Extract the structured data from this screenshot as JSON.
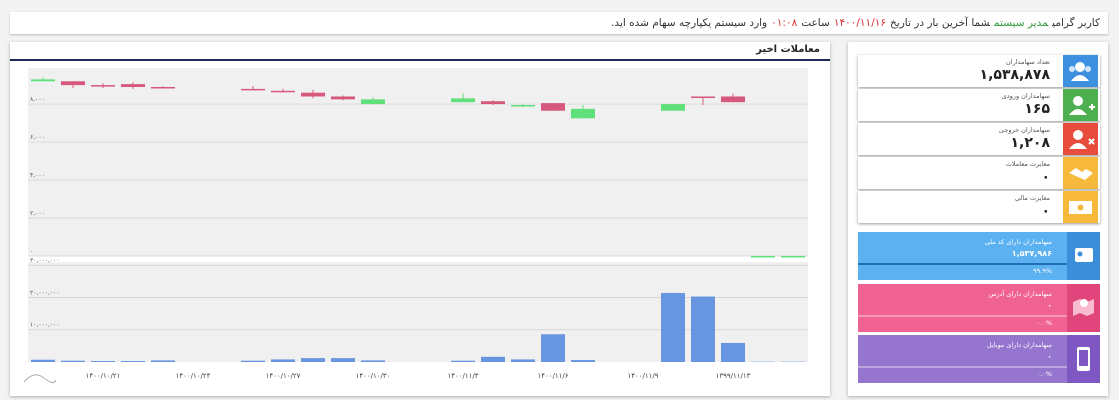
{
  "header": {
    "parts": [
      "کاربر گرامی",
      "مدیر سیستم",
      "شما آخرین بار در تاریخ",
      "۱۴۰۰/۱۱/۱۶",
      "ساعت",
      "۰۱:۰۸",
      "وارد سیستم یکپارچه سهام شده اید."
    ]
  },
  "stats": [
    {
      "label": "تعداد سهامداران",
      "value": "۱,۵۳۸,۸۷۸"
    },
    {
      "label": "سهامداران ورودی",
      "value": "۱۶۵"
    },
    {
      "label": "سهامداران خروجی",
      "value": "۱,۲۰۸"
    },
    {
      "label": "مغایرت معاملات",
      "value": "۰"
    },
    {
      "label": "مغایرت مالی",
      "value": "۰"
    }
  ],
  "coverage": [
    {
      "label": "سهامداران دارای کد ملی",
      "value": "۱,۵۳۷,۹۸۶",
      "percent": "۹۹.۹%"
    },
    {
      "label": "سهامداران دارای آدرس",
      "value": "۰",
      "percent": "۰.۰%"
    },
    {
      "label": "سهامداران دارای موبایل",
      "value": "۰",
      "percent": "۰.۰%"
    }
  ],
  "chart_data": {
    "type": "candlestick",
    "title": "معاملات اخیر",
    "categories": [
      null,
      null,
      "۱۴۰۰/۱۰/۲۱",
      null,
      null,
      "۱۴۰۰/۱۰/۲۴",
      null,
      null,
      "۱۴۰۰/۱۰/۲۷",
      null,
      null,
      "۱۴۰۰/۱۰/۳۰",
      null,
      null,
      "۱۴۰۰/۱۱/۳",
      null,
      null,
      "۱۴۰۰/۱۱/۶",
      null,
      null,
      "۱۴۰۰/۱۱/۹",
      null,
      null,
      "۱۳۹۹/۱۱/۱۳",
      null,
      null
    ],
    "open": [
      9200,
      9200,
      9000,
      9050,
      8900,
      null,
      null,
      8800,
      8700,
      8600,
      8400,
      8000,
      null,
      null,
      8100,
      8150,
      7900,
      8050,
      7250,
      null,
      null,
      7650,
      8400,
      8400,
      0,
      0
    ],
    "high": [
      9400,
      9200,
      9100,
      9150,
      8950,
      null,
      null,
      8950,
      8800,
      8750,
      8450,
      8350,
      null,
      null,
      8550,
      8200,
      8000,
      8050,
      7950,
      null,
      null,
      8000,
      8400,
      8550,
      0,
      0
    ],
    "low": [
      9200,
      8850,
      8850,
      8800,
      8850,
      null,
      null,
      8750,
      8600,
      8300,
      8200,
      8000,
      null,
      null,
      8100,
      7950,
      7850,
      7650,
      7250,
      null,
      null,
      7650,
      7950,
      8100,
      0,
      0
    ],
    "close": [
      9300,
      9000,
      8950,
      8900,
      8850,
      null,
      null,
      8750,
      8650,
      8400,
      8250,
      8250,
      null,
      null,
      8300,
      8000,
      7950,
      7650,
      7750,
      null,
      null,
      8000,
      8350,
      8100,
      0,
      0
    ],
    "up_color": "#5fe07a",
    "down_color": "#d6587c",
    "ylim": [
      0,
      9900
    ],
    "yticks": [
      {
        "value": 0,
        "label": "۰"
      },
      {
        "value": 2000,
        "label": "۲,۰۰۰"
      },
      {
        "value": 4000,
        "label": "۴,۰۰۰"
      },
      {
        "value": 6000,
        "label": "۶,۰۰۰"
      },
      {
        "value": 8000,
        "label": "۸,۰۰۰"
      }
    ],
    "grid": true,
    "volume": {
      "type": "bar",
      "color": "#6895e0",
      "values": [
        700000,
        400000,
        300000,
        300000,
        500000,
        null,
        null,
        400000,
        800000,
        1200000,
        1200000,
        500000,
        null,
        null,
        400000,
        1600000,
        800000,
        8600000,
        600000,
        null,
        null,
        21400000,
        20300000,
        5900000,
        100000,
        100000
      ],
      "ylim": [
        0,
        31000000
      ],
      "yticks": [
        {
          "value": 10000000,
          "label": "۱۰,۰۰۰,۰۰۰"
        },
        {
          "value": 20000000,
          "label": "۲۰,۰۰۰,۰۰۰"
        },
        {
          "value": 30000000,
          "label": "۳۰,۰۰۰,۰۰۰"
        }
      ]
    }
  }
}
